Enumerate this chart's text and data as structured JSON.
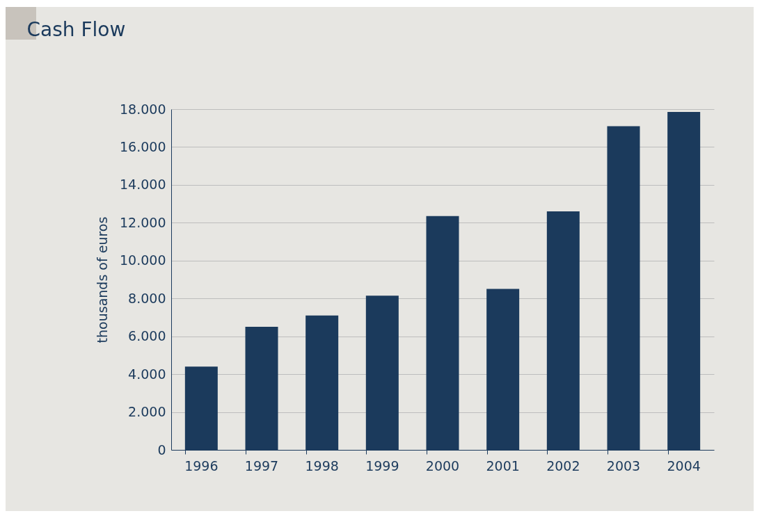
{
  "chart_data": {
    "type": "bar",
    "title": "Cash Flow",
    "ylabel": "thousands of euros",
    "categories": [
      "1996",
      "1997",
      "1998",
      "1999",
      "2000",
      "2001",
      "2002",
      "2003",
      "2004"
    ],
    "values": [
      4400,
      6500,
      7100,
      8150,
      12350,
      8500,
      12600,
      17100,
      17850
    ],
    "color": "#1b3a5c",
    "ylim": [
      0,
      18000
    ],
    "yticks": [
      0,
      {
        "value": 2000,
        "label": "2.000"
      },
      {
        "value": 4000,
        "label": "4.000"
      },
      {
        "value": 6000,
        "label": "6.000"
      },
      {
        "value": 8000,
        "label": "8.000"
      },
      {
        "value": 10000,
        "label": "10.000"
      },
      {
        "value": 12000,
        "label": "12.000"
      },
      {
        "value": 14000,
        "label": "14.000"
      },
      {
        "value": 16000,
        "label": "16.000"
      },
      {
        "value": 18000,
        "label": "18.000"
      }
    ],
    "grid": "y"
  }
}
